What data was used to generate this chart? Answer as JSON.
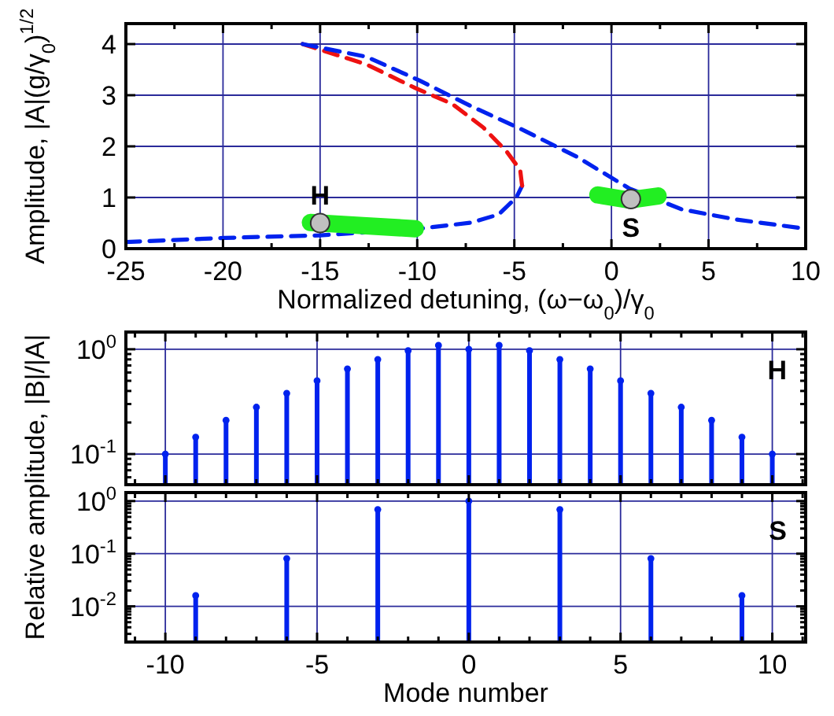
{
  "chart_data": [
    {
      "type": "line",
      "xlabel": "Normalized detuning, (ω−ω$_{0}$)/γ$_{0}$",
      "ylabel": "Amplitude, |A|(g/γ$_{0}$)$^{1/2}$",
      "xlim": [
        -25,
        10
      ],
      "ylim": [
        0,
        4.4
      ],
      "xticks": [
        -25,
        {
          "value": -22.5,
          "label": null
        },
        -20,
        {
          "value": -17.5,
          "label": null
        },
        -15,
        {
          "value": -12.5,
          "label": null
        },
        -10,
        {
          "value": -7.5,
          "label": null
        },
        -5,
        {
          "value": -2.5,
          "label": null
        },
        0,
        {
          "value": 2.5,
          "label": null
        },
        5,
        {
          "value": 7.5,
          "label": null
        },
        10
      ],
      "yticks": [
        0,
        1,
        2,
        3,
        4
      ],
      "grid": true,
      "series": [
        {
          "color": "#0022ee",
          "line_style": "dashed",
          "x": [
            -25,
            -19.9,
            -15,
            -9.9,
            -7.2,
            -5.8,
            -4.9,
            -4.6
          ],
          "values": [
            0.13,
            0.21,
            0.26,
            0.39,
            0.51,
            0.67,
            1.0,
            1.23
          ]
        },
        {
          "color": "#ee1111",
          "line_style": "dashed",
          "x": [
            -4.6,
            -4.7,
            -5.4,
            -6.6,
            -8.2,
            -10.1,
            -12.6,
            -15.9
          ],
          "values": [
            1.23,
            1.54,
            1.9,
            2.37,
            2.83,
            3.14,
            3.6,
            4.0
          ]
        },
        {
          "color": "#0022ee",
          "line_style": "dashed",
          "x": [
            -15.9,
            -12.6,
            -9.9,
            -7.2,
            -4.5,
            -1.8,
            0.9,
            3.6,
            6.4,
            10
          ],
          "values": [
            4.0,
            3.75,
            3.29,
            2.78,
            2.31,
            1.8,
            1.18,
            0.77,
            0.57,
            0.39
          ]
        },
        {
          "color": "#22ee22",
          "line_style": "solid",
          "x": [
            -15.5,
            -12.8,
            -10.1
          ],
          "values": [
            0.51,
            0.45,
            0.39
          ]
        },
        {
          "color": "#22ee22",
          "line_style": "solid",
          "x": [
            -0.7,
            0.9,
            2.4
          ],
          "values": [
            1.05,
            0.95,
            1.03
          ]
        },
        {
          "type": "scatter",
          "color": "#c0c0c0",
          "marker": "circle",
          "x": [
            -15,
            1
          ],
          "values": [
            0.5,
            0.97
          ]
        }
      ],
      "annotations": [
        {
          "text": "H",
          "x": -15,
          "y": 0.5
        },
        {
          "text": "S",
          "x": 1,
          "y": 0.97
        }
      ]
    },
    {
      "type": "lollipop",
      "ylabel": "Relative amplitude, |B|/|A|",
      "log": "y",
      "xlim": [
        -11.3,
        11.1
      ],
      "ylim": [
        0.051,
        1.46
      ],
      "tick_labels": "y",
      "grid": true,
      "marker": "circle",
      "xticks": [
        {
          "value": -11,
          "label": null
        },
        -10,
        {
          "value": -9,
          "label": null
        },
        {
          "value": -8,
          "label": null
        },
        {
          "value": -7,
          "label": null
        },
        {
          "value": -6,
          "label": null
        },
        -5,
        {
          "value": -4,
          "label": null
        },
        {
          "value": -3,
          "label": null
        },
        {
          "value": -2,
          "label": null
        },
        {
          "value": -1,
          "label": null
        },
        0,
        {
          "value": 1,
          "label": null
        },
        {
          "value": 2,
          "label": null
        },
        {
          "value": 3,
          "label": null
        },
        {
          "value": 4,
          "label": null
        },
        5,
        {
          "value": 6,
          "label": null
        },
        {
          "value": 7,
          "label": null
        },
        {
          "value": 8,
          "label": null
        },
        {
          "value": 9,
          "label": null
        },
        10,
        {
          "value": 11,
          "label": null
        }
      ],
      "yticks": [
        {
          "value": 0.06,
          "label": null
        },
        {
          "value": 0.07,
          "label": null
        },
        {
          "value": 0.08,
          "label": null
        },
        {
          "value": 0.09,
          "label": null
        },
        {
          "value": 0.1,
          "label": "10$^{-1}$"
        },
        {
          "value": 0.2,
          "label": null
        },
        {
          "value": 0.3,
          "label": null
        },
        {
          "value": 0.4,
          "label": null
        },
        {
          "value": 0.5,
          "label": null
        },
        {
          "value": 0.6,
          "label": null
        },
        {
          "value": 0.7,
          "label": null
        },
        {
          "value": 0.8,
          "label": null
        },
        {
          "value": 0.9,
          "label": null
        },
        {
          "value": 1,
          "label": "10$^{0}$"
        }
      ],
      "x": [
        -10,
        -9,
        -8,
        -7,
        -6,
        -5,
        -4,
        -3,
        -2,
        -1,
        0,
        1,
        2,
        3,
        4,
        5,
        6,
        7,
        8,
        9,
        10
      ],
      "series": [
        {
          "color": "#0022ee",
          "values": [
            0.1,
            0.145,
            0.21,
            0.28,
            0.38,
            0.5,
            0.65,
            0.8,
            0.97,
            1.09,
            1.0,
            1.09,
            0.97,
            0.8,
            0.65,
            0.5,
            0.38,
            0.28,
            0.21,
            0.145,
            0.1
          ]
        }
      ],
      "annotations": [
        "H"
      ]
    },
    {
      "type": "lollipop",
      "xlabel": "Mode number",
      "log": "y",
      "xlim": [
        -11.3,
        11.1
      ],
      "ylim": [
        0.0021,
        1.45
      ],
      "grid": true,
      "marker": "circle",
      "xticks": [
        {
          "value": -11,
          "label": null
        },
        -10,
        {
          "value": -9,
          "label": null
        },
        {
          "value": -8,
          "label": null
        },
        {
          "value": -7,
          "label": null
        },
        {
          "value": -6,
          "label": null
        },
        -5,
        {
          "value": -4,
          "label": null
        },
        {
          "value": -3,
          "label": null
        },
        {
          "value": -2,
          "label": null
        },
        {
          "value": -1,
          "label": null
        },
        0,
        {
          "value": 1,
          "label": null
        },
        {
          "value": 2,
          "label": null
        },
        {
          "value": 3,
          "label": null
        },
        {
          "value": 4,
          "label": null
        },
        5,
        {
          "value": 6,
          "label": null
        },
        {
          "value": 7,
          "label": null
        },
        {
          "value": 8,
          "label": null
        },
        {
          "value": 9,
          "label": null
        },
        10,
        {
          "value": 11,
          "label": null
        }
      ],
      "yticks": [
        {
          "value": 0.003,
          "label": null
        },
        {
          "value": 0.004,
          "label": null
        },
        {
          "value": 0.005,
          "label": null
        },
        {
          "value": 0.006,
          "label": null
        },
        {
          "value": 0.007,
          "label": null
        },
        {
          "value": 0.008,
          "label": null
        },
        {
          "value": 0.009,
          "label": null
        },
        {
          "value": 0.01,
          "label": "10$^{-2}$"
        },
        {
          "value": 0.02,
          "label": null
        },
        {
          "value": 0.03,
          "label": null
        },
        {
          "value": 0.04,
          "label": null
        },
        {
          "value": 0.05,
          "label": null
        },
        {
          "value": 0.06,
          "label": null
        },
        {
          "value": 0.07,
          "label": null
        },
        {
          "value": 0.08,
          "label": null
        },
        {
          "value": 0.09,
          "label": null
        },
        {
          "value": 0.1,
          "label": "10$^{-1}$"
        },
        {
          "value": 0.2,
          "label": null
        },
        {
          "value": 0.3,
          "label": null
        },
        {
          "value": 0.4,
          "label": null
        },
        {
          "value": 0.5,
          "label": null
        },
        {
          "value": 0.6,
          "label": null
        },
        {
          "value": 0.7,
          "label": null
        },
        {
          "value": 0.8,
          "label": null
        },
        {
          "value": 0.9,
          "label": null
        },
        {
          "value": 1,
          "label": "10$^{0}$"
        }
      ],
      "x": [
        -9,
        -6,
        -3,
        0,
        3,
        6,
        9
      ],
      "series": [
        {
          "color": "#0022ee",
          "values": [
            0.016,
            0.081,
            0.69,
            1.0,
            0.69,
            0.081,
            0.016
          ]
        }
      ],
      "annotations": [
        "S"
      ]
    }
  ]
}
